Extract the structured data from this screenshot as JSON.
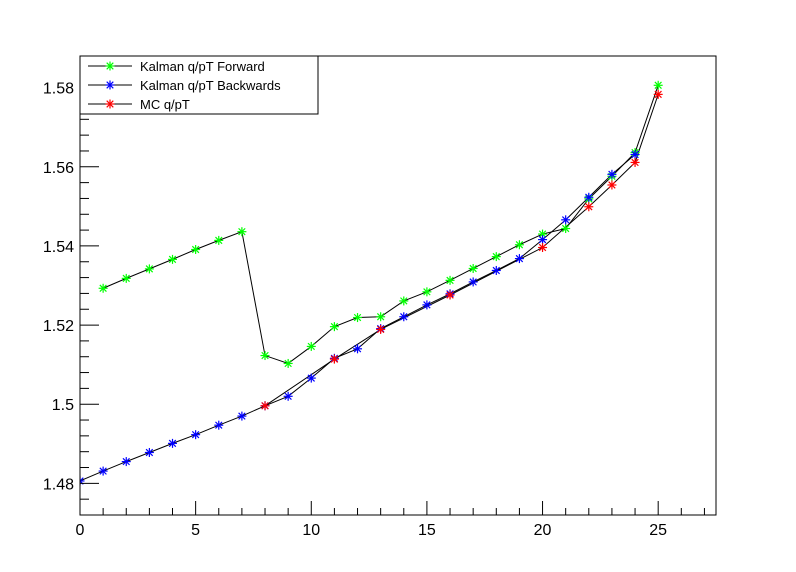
{
  "chart_data": {
    "type": "line",
    "title": "",
    "xlabel": "",
    "ylabel": "",
    "xlim": [
      0,
      27.5
    ],
    "ylim": [
      1.472,
      1.588
    ],
    "xticks": [
      0,
      5,
      10,
      15,
      20,
      25
    ],
    "xtick_labels": [
      "0",
      "5",
      "10",
      "15",
      "20",
      "25"
    ],
    "yticks": [
      1.48,
      1.5,
      1.52,
      1.54,
      1.56,
      1.58
    ],
    "ytick_labels": [
      "1.48",
      "1.5",
      "1.52",
      "1.54",
      "1.56",
      "1.58"
    ],
    "grid": false,
    "legend_position": "top-left",
    "series": [
      {
        "name": "Kalman q/pT Forward",
        "marker_color": "#00ff00",
        "line_color": "#000000",
        "x": [
          1,
          2,
          3,
          4,
          5,
          6,
          7,
          8,
          9,
          10,
          11,
          12,
          13,
          14,
          15,
          16,
          17,
          18,
          19,
          20,
          21,
          22,
          23,
          24,
          25
        ],
        "y": [
          1.5293,
          1.5318,
          1.5342,
          1.5366,
          1.5391,
          1.5414,
          1.5436,
          1.5123,
          1.5103,
          1.5146,
          1.5196,
          1.5219,
          1.5221,
          1.5261,
          1.5284,
          1.5313,
          1.5343,
          1.5373,
          1.5403,
          1.543,
          1.5444,
          1.5519,
          1.5576,
          1.5636,
          1.5806
        ]
      },
      {
        "name": "Kalman q/pT Backwards",
        "marker_color": "#0000ff",
        "line_color": "#000000",
        "x": [
          0,
          1,
          2,
          3,
          4,
          5,
          6,
          7,
          8,
          9,
          10,
          11,
          12,
          13,
          14,
          15,
          16,
          17,
          18,
          19,
          20,
          21,
          22,
          23,
          24
        ],
        "y": [
          1.4806,
          1.4831,
          1.4855,
          1.4878,
          1.4901,
          1.4923,
          1.4947,
          1.497,
          1.4996,
          1.502,
          1.5066,
          1.5116,
          1.514,
          1.5191,
          1.5221,
          1.5251,
          1.5279,
          1.5309,
          1.5338,
          1.5368,
          1.5416,
          1.5466,
          1.5523,
          1.5581,
          1.5631
        ]
      },
      {
        "name": "MC q/pT",
        "marker_color": "#ff0000",
        "line_color": "#000000",
        "x": [
          8,
          11,
          13,
          16,
          20,
          22,
          23,
          24,
          25
        ],
        "y": [
          1.4996,
          1.5114,
          1.5189,
          1.5276,
          1.5396,
          1.5499,
          1.5554,
          1.5611,
          1.5783
        ]
      }
    ]
  }
}
